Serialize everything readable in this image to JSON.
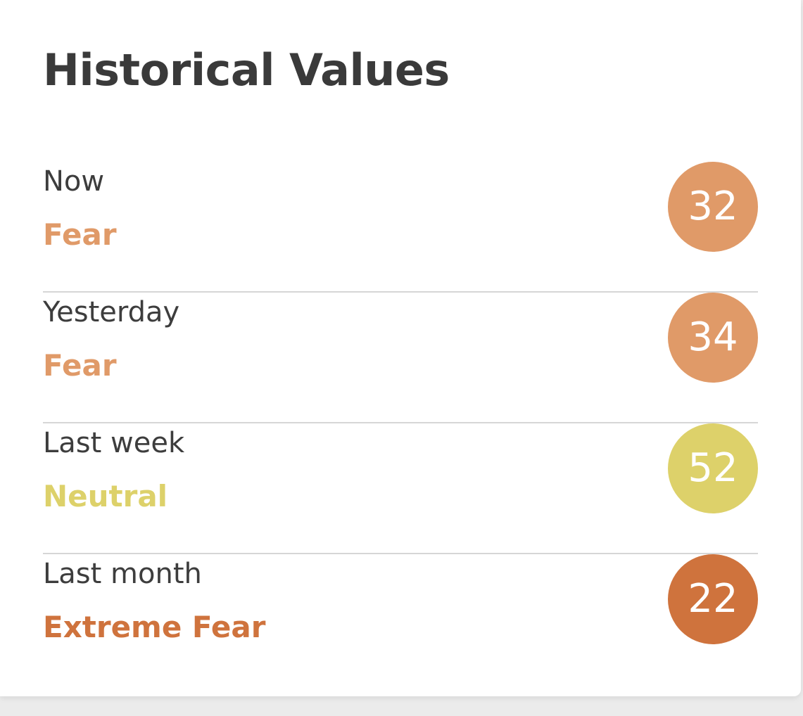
{
  "title": "Historical Values",
  "rows": [
    {
      "period": "Now",
      "sentiment": "Fear",
      "value": "32",
      "color": "#e09a68",
      "text_color": "#e09a68"
    },
    {
      "period": "Yesterday",
      "sentiment": "Fear",
      "value": "34",
      "color": "#e09a68",
      "text_color": "#e09a68"
    },
    {
      "period": "Last week",
      "sentiment": "Neutral",
      "value": "52",
      "color": "#ddd16a",
      "text_color": "#ddd16a"
    },
    {
      "period": "Last month",
      "sentiment": "Extreme Fear",
      "value": "22",
      "color": "#cf733d",
      "text_color": "#cf733d"
    }
  ]
}
